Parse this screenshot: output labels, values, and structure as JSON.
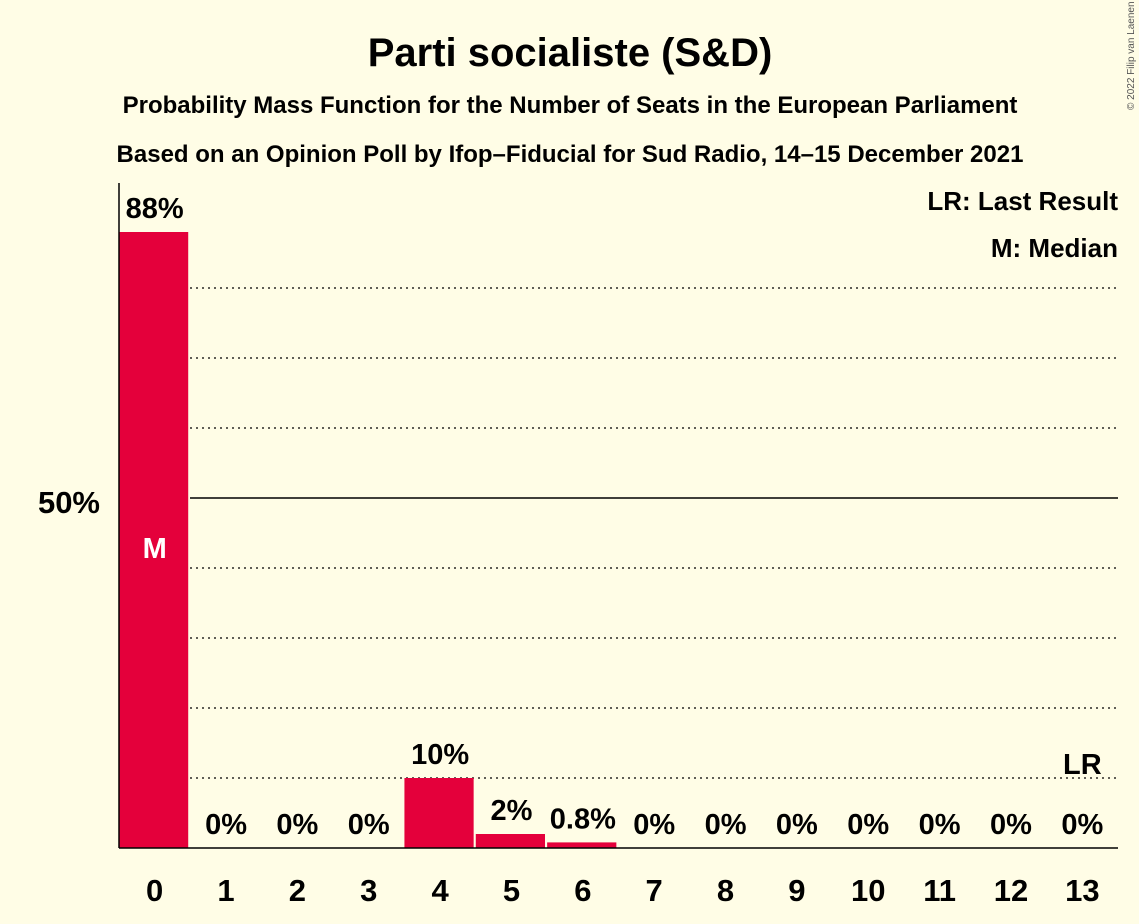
{
  "chart_data": {
    "type": "bar",
    "title": "Parti socialiste (S&D)",
    "subtitle": "Probability Mass Function for the Number of Seats in the European Parliament",
    "source": "Based on an Opinion Poll by Ifop–Fiducial for Sud Radio, 14–15 December 2021",
    "copyright": "© 2022 Filip van Laenen",
    "categories": [
      "0",
      "1",
      "2",
      "3",
      "4",
      "5",
      "6",
      "7",
      "8",
      "9",
      "10",
      "11",
      "12",
      "13"
    ],
    "values": [
      88,
      0,
      0,
      0,
      10,
      2,
      0.8,
      0,
      0,
      0,
      0,
      0,
      0,
      0
    ],
    "value_labels": [
      "88%",
      "0%",
      "0%",
      "0%",
      "10%",
      "2%",
      "0.8%",
      "0%",
      "0%",
      "0%",
      "0%",
      "0%",
      "0%",
      "0%"
    ],
    "ylim": [
      0,
      95
    ],
    "ytick_label": "50%",
    "ytick_value": 50,
    "gridlines": [
      10,
      20,
      30,
      40,
      60,
      70,
      80
    ],
    "median_index": 0,
    "median_marker": "M",
    "last_result_index": 13,
    "last_result_marker": "LR",
    "legend": [
      "LR: Last Result",
      "M: Median"
    ],
    "bar_color": "#E4003B",
    "background_color": "#FFFDE6"
  }
}
